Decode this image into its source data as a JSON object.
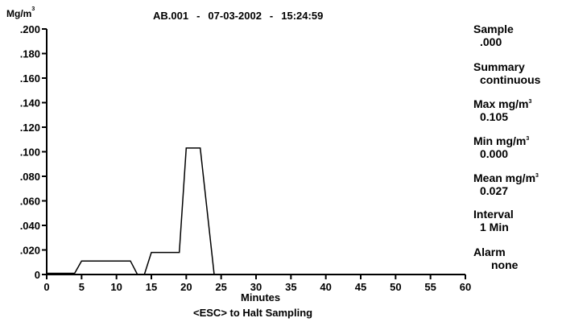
{
  "header": {
    "id": "AB.001",
    "date": "07-03-2002",
    "time": "15:24:59",
    "separator": "-"
  },
  "y_unit": {
    "base": "Mg/m",
    "sup": "3"
  },
  "sidebar": {
    "sample_label": "Sample",
    "sample_value": ".000",
    "summary_label": "Summary",
    "summary_value": "continuous",
    "max_label": "Max mg/m",
    "max_value": "0.105",
    "min_label": "Min mg/m",
    "min_value": "0.000",
    "mean_label": "Mean mg/m",
    "mean_value": "0.027",
    "unit_sup": "3",
    "interval_label": "Interval",
    "interval_value": "1 Min",
    "alarm_label": "Alarm",
    "alarm_value": "none"
  },
  "footer": {
    "x_unit": "Minutes",
    "hint": "<ESC> to Halt Sampling"
  },
  "colors": {
    "line": "#000000",
    "background": "#ffffff"
  },
  "chart_data": {
    "type": "line",
    "title": "AB.001  -  07-03-2002  -  15:24:59",
    "xlabel": "Minutes",
    "ylabel": "Mg/m3",
    "xlim": [
      0,
      60
    ],
    "ylim": [
      0,
      0.2
    ],
    "x_ticks": [
      "0",
      "5",
      "10",
      "15",
      "20",
      "25",
      "30",
      "35",
      "40",
      "45",
      "50",
      "55",
      "60"
    ],
    "y_ticks": [
      "0",
      ".020",
      ".040",
      ".060",
      ".080",
      ".100",
      ".120",
      ".140",
      ".160",
      ".180",
      ".200"
    ],
    "grid": false,
    "series": [
      {
        "x": [
          0,
          4,
          5,
          12,
          13,
          14,
          15,
          19,
          20,
          22,
          24
        ],
        "y": [
          0.001,
          0.001,
          0.011,
          0.011,
          0.0,
          0.0,
          0.018,
          0.018,
          0.103,
          0.103,
          0.0
        ]
      }
    ]
  }
}
